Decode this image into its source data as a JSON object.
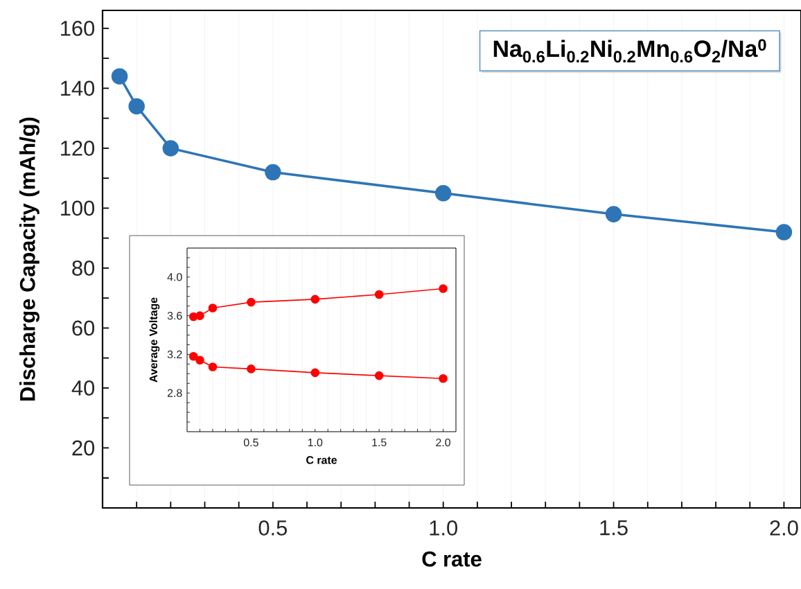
{
  "chart_data": [
    {
      "type": "line",
      "xlabel": "C rate",
      "ylabel": "Discharge Capacity (mAh/g)",
      "x": [
        0.05,
        0.1,
        0.2,
        0.5,
        1.0,
        1.5,
        2.0
      ],
      "series": [
        {
          "color": "#2e75b6",
          "values": [
            144,
            134,
            120,
            112,
            105,
            98,
            92
          ]
        }
      ],
      "xlim": [
        0,
        2.05
      ],
      "ylim": [
        0,
        166
      ],
      "xticks": [
        {
          "value": 0.1,
          "label": null
        },
        {
          "value": 0.2,
          "label": null
        },
        {
          "value": 0.3,
          "label": null
        },
        {
          "value": 0.4,
          "label": null
        },
        {
          "value": 0.5,
          "label": "0.5"
        },
        {
          "value": 0.6,
          "label": null
        },
        {
          "value": 0.7,
          "label": null
        },
        {
          "value": 0.8,
          "label": null
        },
        {
          "value": 0.9,
          "label": null
        },
        {
          "value": 1.0,
          "label": "1.0"
        },
        {
          "value": 1.1,
          "label": null
        },
        {
          "value": 1.2,
          "label": null
        },
        {
          "value": 1.3,
          "label": null
        },
        {
          "value": 1.4,
          "label": null
        },
        {
          "value": 1.5,
          "label": "1.5"
        },
        {
          "value": 1.6,
          "label": null
        },
        {
          "value": 1.7,
          "label": null
        },
        {
          "value": 1.8,
          "label": null
        },
        {
          "value": 1.9,
          "label": null
        },
        {
          "value": 2.0,
          "label": "2.0"
        }
      ],
      "yticks": [
        {
          "value": 10,
          "label": null
        },
        20,
        {
          "value": 30,
          "label": null
        },
        40,
        {
          "value": 50,
          "label": null
        },
        60,
        {
          "value": 70,
          "label": null
        },
        80,
        {
          "value": 90,
          "label": null
        },
        100,
        {
          "value": 110,
          "label": null
        },
        120,
        {
          "value": 130,
          "label": null
        },
        140,
        {
          "value": 150,
          "label": null
        },
        160
      ],
      "grid": "x",
      "marker": "circle",
      "annotations": [
        "**Na$_{0.6}$Li$_{0.2}$Ni$_{0.2}$Mn$_{0.6}$O$_{2}$/Na$^{0}$**"
      ]
    },
    {
      "type": "line",
      "xlabel": "C rate",
      "ylabel": "Average Voltage",
      "x": [
        0.05,
        0.1,
        0.2,
        0.5,
        1.0,
        1.5,
        2.0
      ],
      "series": [
        {
          "color": "#ff0000",
          "values": [
            3.59,
            3.6,
            3.68,
            3.74,
            3.77,
            3.82,
            3.88
          ]
        },
        {
          "color": "#ff0000",
          "values": [
            3.18,
            3.14,
            3.07,
            3.05,
            3.01,
            2.98,
            2.95
          ]
        }
      ],
      "xlim": [
        0,
        2.1
      ],
      "ylim": [
        2.4,
        4.3
      ],
      "xticks": [
        {
          "value": 0.1,
          "label": null
        },
        {
          "value": 0.2,
          "label": null
        },
        {
          "value": 0.3,
          "label": null
        },
        {
          "value": 0.4,
          "label": null
        },
        {
          "value": 0.5,
          "label": "0.5"
        },
        {
          "value": 0.6,
          "label": null
        },
        {
          "value": 0.7,
          "label": null
        },
        {
          "value": 0.8,
          "label": null
        },
        {
          "value": 0.9,
          "label": null
        },
        {
          "value": 1.0,
          "label": "1.0"
        },
        {
          "value": 1.1,
          "label": null
        },
        {
          "value": 1.2,
          "label": null
        },
        {
          "value": 1.3,
          "label": null
        },
        {
          "value": 1.4,
          "label": null
        },
        {
          "value": 1.5,
          "label": "1.5"
        },
        {
          "value": 1.6,
          "label": null
        },
        {
          "value": 1.7,
          "label": null
        },
        {
          "value": 1.8,
          "label": null
        },
        {
          "value": 1.9,
          "label": null
        },
        {
          "value": 2.0,
          "label": "2.0"
        }
      ],
      "yticks": [
        {
          "value": 2.5,
          "label": null
        },
        {
          "value": 2.6,
          "label": null
        },
        {
          "value": 2.7,
          "label": null
        },
        {
          "value": 2.8,
          "label": "2.8"
        },
        {
          "value": 2.9,
          "label": null
        },
        {
          "value": 3.0,
          "label": null
        },
        {
          "value": 3.1,
          "label": null
        },
        {
          "value": 3.2,
          "label": "3.2"
        },
        {
          "value": 3.3,
          "label": null
        },
        {
          "value": 3.4,
          "label": null
        },
        {
          "value": 3.5,
          "label": null
        },
        {
          "value": 3.6,
          "label": "3.6"
        },
        {
          "value": 3.7,
          "label": null
        },
        {
          "value": 3.8,
          "label": null
        },
        {
          "value": 3.9,
          "label": null
        },
        {
          "value": 4.0,
          "label": "4.0"
        },
        {
          "value": 4.1,
          "label": null
        },
        {
          "value": 4.2,
          "label": null
        }
      ],
      "grid": "x",
      "marker": "circle"
    }
  ]
}
